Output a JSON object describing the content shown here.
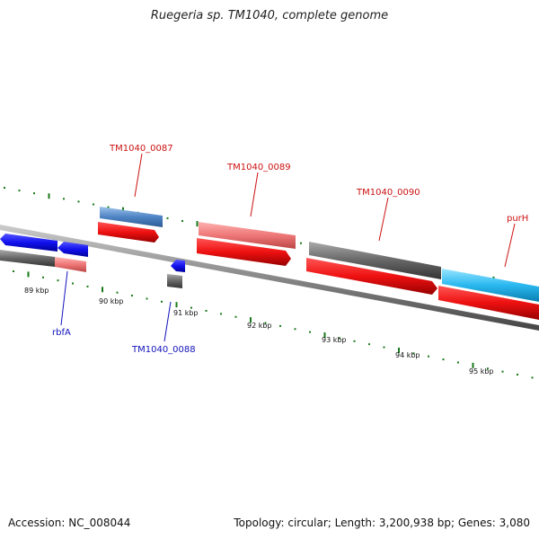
{
  "title": "Ruegeria sp. TM1040, complete genome",
  "footer": {
    "accession": "Accession: NC_008044",
    "summary": "Topology: circular; Length: 3,200,938 bp; Genes: 3,080"
  },
  "colors": {
    "forward_gene": "#ee1111",
    "reverse_gene": "#1111ee",
    "feature_gray": "#666666",
    "feature_pink": "#ee7777",
    "feature_steel": "#4f84c4",
    "feature_cyan": "#2ab8f0",
    "backbone": "#888888",
    "tick": "#1a7a1a",
    "label_forward": "#cc1111",
    "label_reverse": "#1111bb"
  },
  "scale_labels": [
    "89 kbp",
    "90 kbp",
    "91 kbp",
    "92 kbp",
    "93 kbp",
    "94 kbp",
    "95 kbp"
  ],
  "gene_labels": [
    {
      "name": "TM1040_0087",
      "strand": "forward"
    },
    {
      "name": "TM1040_0089",
      "strand": "forward"
    },
    {
      "name": "TM1040_0090",
      "strand": "forward"
    },
    {
      "name": "purH",
      "strand": "forward"
    },
    {
      "name": "rbfA",
      "strand": "reverse"
    },
    {
      "name": "TM1040_0088",
      "strand": "reverse"
    }
  ]
}
